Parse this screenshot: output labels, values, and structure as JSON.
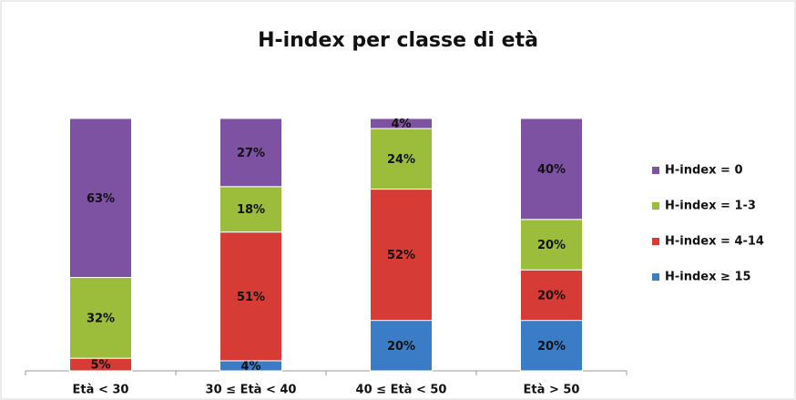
{
  "chart_data": {
    "type": "stacked_bar",
    "title": "H-index per classe di età",
    "categories": [
      "Età < 30",
      "30 ≤ Età < 40",
      "40 ≤ Età < 50",
      "Età > 50"
    ],
    "ylim": [
      0,
      100
    ],
    "legend": "right",
    "series": [
      {
        "name": "H-index ≥ 15",
        "color": "#3b7cc6",
        "values": [
          0,
          4,
          20,
          20
        ],
        "value_labels": [
          null,
          "4%",
          "20%",
          "20%"
        ]
      },
      {
        "name": "H-index = 4-14",
        "color": "#d63b36",
        "values": [
          5,
          51,
          52,
          20
        ],
        "value_labels": [
          "5%",
          "51%",
          "52%",
          "20%"
        ]
      },
      {
        "name": "H-index = 1-3",
        "color": "#9cbd3c",
        "values": [
          32,
          18,
          24,
          20
        ],
        "value_labels": [
          "32%",
          "18%",
          "24%",
          "20%"
        ]
      },
      {
        "name": "H-index = 0",
        "color": "#7d52a3",
        "values": [
          63,
          27,
          4,
          40
        ],
        "value_labels": [
          "63%",
          "27%",
          "4%",
          "40%"
        ]
      }
    ]
  }
}
